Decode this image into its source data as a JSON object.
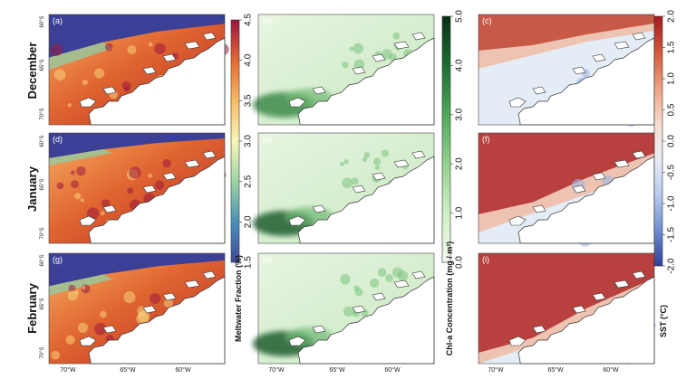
{
  "rows": [
    {
      "label": "December",
      "panels": [
        "(a)",
        "(b)",
        "(c)"
      ]
    },
    {
      "label": "January",
      "panels": [
        "(d)",
        "(e)",
        "(f)"
      ]
    },
    {
      "label": "February",
      "panels": [
        "(g)",
        "(h)",
        "(i)"
      ]
    }
  ],
  "lat_labels": [
    "60°S",
    "65°S",
    "70°S"
  ],
  "lon_labels": [
    "70°W",
    "65°W",
    "60°W"
  ],
  "colorbars": [
    {
      "title": "Meltwater Fraction (%)",
      "ticks": [
        "1.5",
        "2.0",
        "2.5",
        "3.0",
        "3.5",
        "4.0",
        "4.5"
      ],
      "colors": [
        "#3e4a9a",
        "#4a90b8",
        "#9dd4a4",
        "#f6f7b8",
        "#f7bb64",
        "#e26a35",
        "#9a1540"
      ]
    },
    {
      "title": "Chl-a Concentration (mg / m³)",
      "ticks": [
        "0.0",
        "1.0",
        "2.0",
        "3.0",
        "4.0",
        "5.0"
      ],
      "colors": [
        "#f4fbef",
        "#cfeec6",
        "#94d18e",
        "#4fa95a",
        "#1c6c34",
        "#0a2f17"
      ]
    },
    {
      "title": "SST (°C)",
      "ticks": [
        "-2.0",
        "-1.5",
        "-1.0",
        "-0.5",
        "0.0",
        "0.5",
        "1.0",
        "1.5",
        "2.0"
      ],
      "colors": [
        "#2e3f99",
        "#6e8fd0",
        "#b9cbee",
        "#e9eef5",
        "#f6dccd",
        "#eda381",
        "#d3583b",
        "#a5181f"
      ]
    }
  ]
}
